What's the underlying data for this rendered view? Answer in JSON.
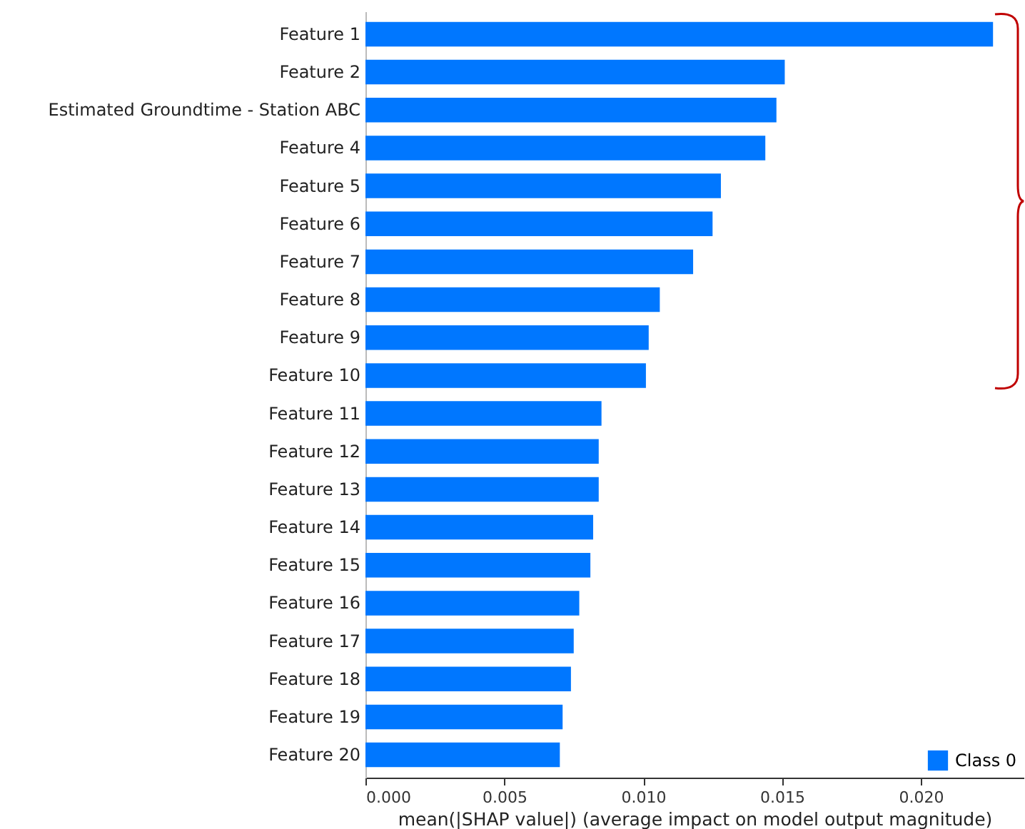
{
  "chart_data": {
    "type": "bar",
    "orientation": "horizontal",
    "categories": [
      "Feature 1",
      "Feature 2",
      "Estimated Groundtime - Station ABC",
      "Feature 4",
      "Feature 5",
      "Feature 6",
      "Feature 7",
      "Feature 8",
      "Feature 9",
      "Feature 10",
      "Feature 11",
      "Feature 12",
      "Feature 13",
      "Feature 14",
      "Feature 15",
      "Feature 16",
      "Feature 17",
      "Feature 18",
      "Feature 19",
      "Feature 20"
    ],
    "series": [
      {
        "name": "Class 0",
        "color": "#0077ff",
        "values": [
          0.0226,
          0.0151,
          0.0148,
          0.0144,
          0.0128,
          0.0125,
          0.0118,
          0.0106,
          0.0102,
          0.0101,
          0.0085,
          0.0084,
          0.0084,
          0.0082,
          0.0081,
          0.0077,
          0.0075,
          0.0074,
          0.0071,
          0.007
        ]
      }
    ],
    "xlim": [
      0,
      0.0237
    ],
    "xticks": [
      {
        "value": 0,
        "label": "0.000"
      },
      {
        "value": 0.005,
        "label": "0.005"
      },
      {
        "value": 0.01,
        "label": "0.010"
      },
      {
        "value": 0.015,
        "label": "0.015"
      },
      {
        "value": 0.02,
        "label": "0.020"
      }
    ],
    "xlabel": "mean(|SHAP value|) (average impact on model output magnitude)",
    "legend": "bottom right"
  }
}
